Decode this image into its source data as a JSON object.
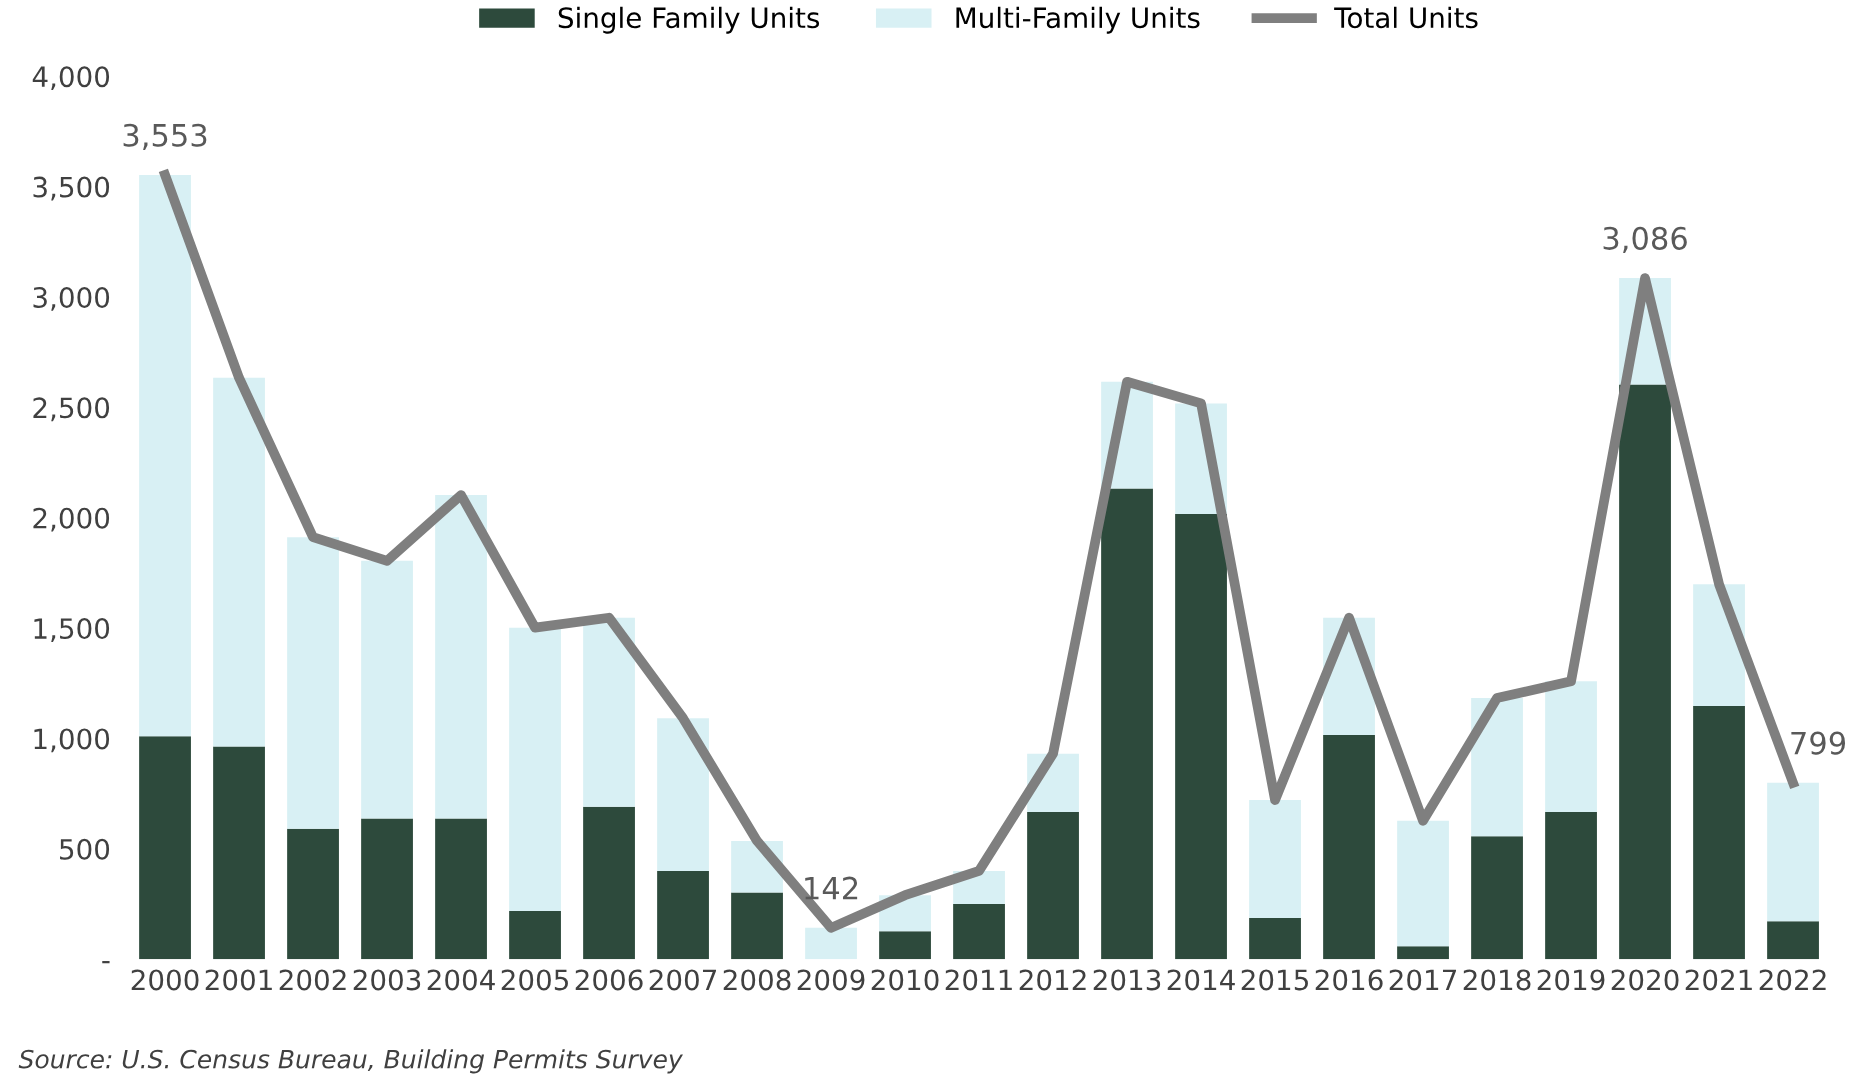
{
  "chart_data": {
    "type": "bar",
    "stacked": true,
    "categories": [
      "2000",
      "2001",
      "2002",
      "2003",
      "2004",
      "2005",
      "2006",
      "2007",
      "2008",
      "2009",
      "2010",
      "2011",
      "2012",
      "2013",
      "2014",
      "2015",
      "2016",
      "2017",
      "2018",
      "2019",
      "2020",
      "2021",
      "2022"
    ],
    "series": [
      {
        "name": "Single Family Units",
        "color": "#2d4a3c",
        "values": [
          1010,
          964,
          591,
          637,
          637,
          218,
          691,
          400,
          302,
          0,
          127,
          250,
          667,
          2133,
          2017,
          187,
          1016,
          59,
          557,
          667,
          2604,
          1147,
          172
        ]
      },
      {
        "name": "Multi-Family Units",
        "color": "#d8f0f4",
        "values": [
          2543,
          1670,
          1321,
          1168,
          1466,
          1284,
          856,
          692,
          234,
          142,
          163,
          150,
          264,
          483,
          501,
          534,
          531,
          568,
          626,
          592,
          482,
          552,
          627
        ]
      },
      {
        "name": "Total Units",
        "type": "line",
        "color": "#7f7f7f",
        "values": [
          3553,
          2634,
          1912,
          1805,
          2103,
          1502,
          1547,
          1092,
          536,
          142,
          290,
          400,
          931,
          2616,
          2518,
          721,
          1547,
          627,
          1183,
          1259,
          3086,
          1699,
          799
        ],
        "value_labels": [
          "3,553",
          null,
          null,
          null,
          null,
          null,
          null,
          null,
          null,
          "142",
          null,
          null,
          null,
          null,
          null,
          null,
          null,
          null,
          null,
          null,
          "3,086",
          null,
          "799"
        ]
      }
    ],
    "ylim": [
      0,
      4000
    ],
    "yticks": [
      {
        "value": 0,
        "label": "-"
      },
      {
        "value": 500,
        "label": "500"
      },
      {
        "value": 1000,
        "label": "1,000"
      },
      {
        "value": 1500,
        "label": "1,500"
      },
      {
        "value": 2000,
        "label": "2,000"
      },
      {
        "value": 2500,
        "label": "2,500"
      },
      {
        "value": 3000,
        "label": "3,000"
      },
      {
        "value": 3500,
        "label": "3,500"
      },
      {
        "value": 4000,
        "label": "4,000"
      }
    ],
    "grid": false,
    "legend": "top",
    "marker": "none",
    "line_style": "solid",
    "annotations": [
      "Source: U.S. Census Bureau, Building Permits Survey"
    ]
  }
}
